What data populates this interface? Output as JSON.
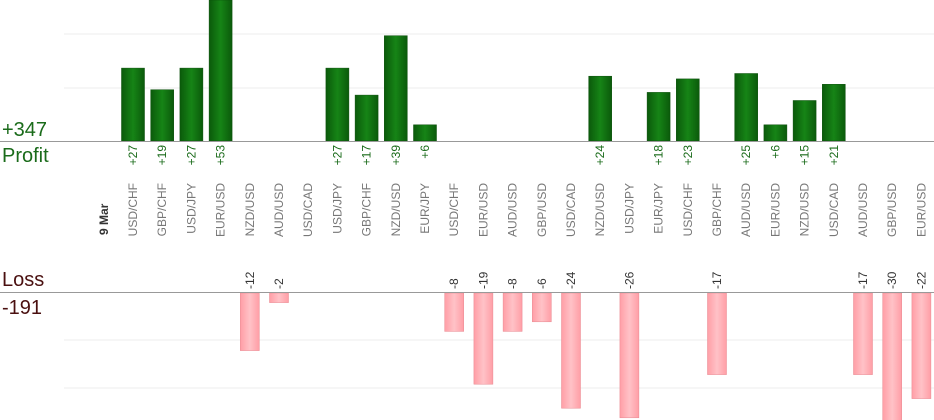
{
  "summary": {
    "profit_total": "+347",
    "profit_label": "Profit",
    "loss_label": "Loss",
    "loss_total": "-191"
  },
  "chart_data": {
    "type": "bar",
    "date_label": "9 Mar",
    "categories": [
      "USD/CHF",
      "GBP/CHF",
      "USD/JPY",
      "EUR/USD",
      "NZD/USD",
      "AUD/USD",
      "USD/CAD",
      "USD/JPY",
      "GBP/CHF",
      "NZD/USD",
      "EUR/JPY",
      "USD/CHF",
      "EUR/USD",
      "AUD/USD",
      "GBP/USD",
      "USD/CAD",
      "NZD/USD",
      "USD/JPY",
      "EUR/JPY",
      "USD/CHF",
      "GBP/CHF",
      "AUD/USD",
      "EUR/USD",
      "NZD/USD",
      "USD/CAD",
      "AUD/USD",
      "GBP/USD",
      "EUR/USD"
    ],
    "series": [
      {
        "values": [
          27,
          19,
          27,
          53,
          0,
          0,
          0,
          27,
          17,
          39,
          6,
          0,
          0,
          0,
          0,
          0,
          24,
          0,
          18,
          23,
          0,
          25,
          6,
          15,
          21,
          0,
          0,
          0
        ]
      },
      {
        "values": [
          0,
          0,
          0,
          0,
          -12,
          -2,
          0,
          0,
          0,
          0,
          0,
          -8,
          -19,
          -8,
          -6,
          -24,
          0,
          -26,
          0,
          0,
          -17,
          0,
          0,
          0,
          0,
          -17,
          -30,
          -22
        ]
      }
    ],
    "value_labels": [
      "+27",
      "+19",
      "+27",
      "+53",
      "-12",
      "-2",
      "",
      "+27",
      "+17",
      "+39",
      "+6",
      "-8",
      "-19",
      "-8",
      "-6",
      "-24",
      "+24",
      "-26",
      "+18",
      "+23",
      "-17",
      "+25",
      "+6",
      "+15",
      "+21",
      "-17",
      "-30",
      "-22"
    ],
    "colors": {
      "profit": "#0e6a0e",
      "loss": "#ffb0b6",
      "axis": "#999999",
      "grid": "#eeeeee"
    }
  }
}
